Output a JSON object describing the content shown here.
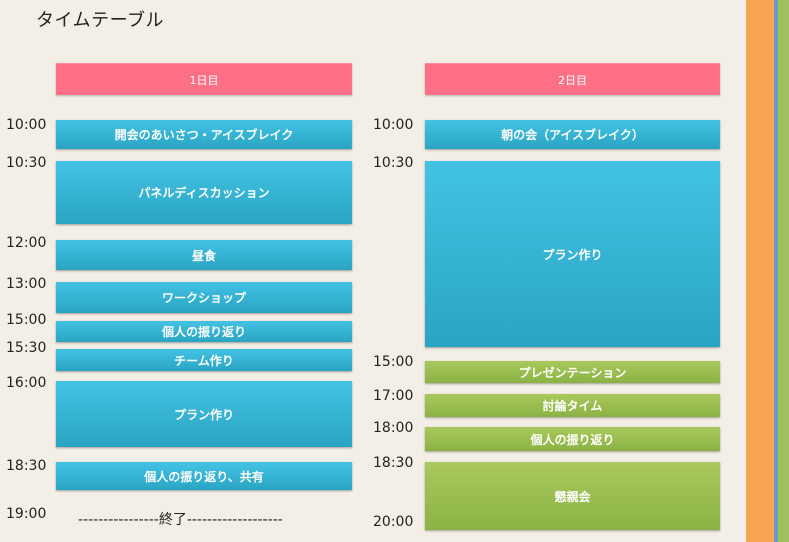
{
  "page": {
    "title": "タイムテーブル"
  },
  "days": [
    {
      "header": "1日目",
      "times": [
        "10:00",
        "10:30",
        "12:00",
        "13:00",
        "15:00",
        "15:30",
        "16:00",
        "18:30",
        "19:00"
      ],
      "blocks": [
        "開会のあいさつ・アイスブレイク",
        "パネルディスカッション",
        "昼食",
        "ワークショップ",
        "個人の振り返り",
        "チーム作り",
        "プラン作り",
        "個人の振り返り、共有"
      ],
      "end_label": "----------------終了-------------------"
    },
    {
      "header": "2日目",
      "times": [
        "10:00",
        "10:30",
        "15:00",
        "17:00",
        "18:00",
        "18:30",
        "20:00"
      ],
      "blocks": [
        "朝の会（アイスブレイク）",
        "プラン作り",
        "プレゼンテーション",
        "討論タイム",
        "個人の振り返り",
        "懇親会"
      ]
    }
  ],
  "colors": {
    "header": "#ff6f86",
    "session_blue": "#38b7d8",
    "session_green": "#9dbf53",
    "side_orange": "#f8a552",
    "side_blue": "#6b98cc",
    "side_green": "#9fc05e"
  }
}
